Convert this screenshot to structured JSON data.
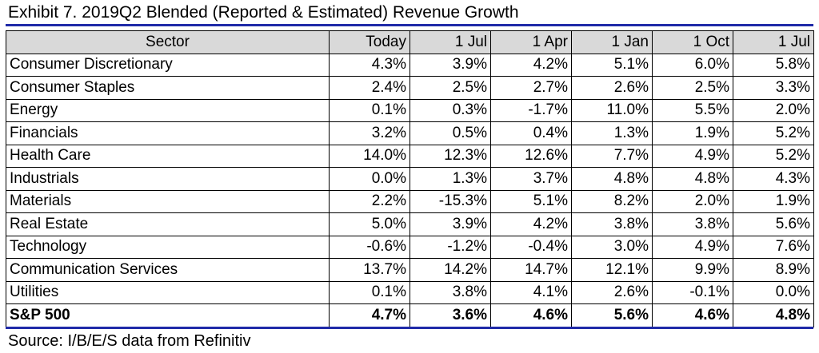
{
  "title": "Exhibit 7.  2019Q2 Blended (Reported & Estimated) Revenue Growth",
  "source": "Source: I/B/E/S data from Refinitiv",
  "colors": {
    "rule": "#1f2aa8",
    "header_bg": "#d9d9d9"
  },
  "table": {
    "headers": [
      "Sector",
      "Today",
      "1 Jul",
      "1 Apr",
      "1 Jan",
      "1 Oct",
      "1 Jul"
    ],
    "rows": [
      {
        "sector": "Consumer Discretionary",
        "values": [
          "4.3%",
          "3.9%",
          "4.2%",
          "5.1%",
          "6.0%",
          "5.8%"
        ]
      },
      {
        "sector": "Consumer Staples",
        "values": [
          "2.4%",
          "2.5%",
          "2.7%",
          "2.6%",
          "2.5%",
          "3.3%"
        ]
      },
      {
        "sector": "Energy",
        "values": [
          "0.1%",
          "0.3%",
          "-1.7%",
          "11.0%",
          "5.5%",
          "2.0%"
        ]
      },
      {
        "sector": "Financials",
        "values": [
          "3.2%",
          "0.5%",
          "0.4%",
          "1.3%",
          "1.9%",
          "5.2%"
        ]
      },
      {
        "sector": "Health Care",
        "values": [
          "14.0%",
          "12.3%",
          "12.6%",
          "7.7%",
          "4.9%",
          "5.2%"
        ]
      },
      {
        "sector": "Industrials",
        "values": [
          "0.0%",
          "1.3%",
          "3.7%",
          "4.8%",
          "4.8%",
          "4.3%"
        ]
      },
      {
        "sector": "Materials",
        "values": [
          "2.2%",
          "-15.3%",
          "5.1%",
          "8.2%",
          "2.0%",
          "1.9%"
        ]
      },
      {
        "sector": "Real Estate",
        "values": [
          "5.0%",
          "3.9%",
          "4.2%",
          "3.8%",
          "3.8%",
          "5.6%"
        ]
      },
      {
        "sector": "Technology",
        "values": [
          "-0.6%",
          "-1.2%",
          "-0.4%",
          "3.0%",
          "4.9%",
          "7.6%"
        ]
      },
      {
        "sector": "Communication Services",
        "values": [
          "13.7%",
          "14.2%",
          "14.7%",
          "12.1%",
          "9.9%",
          "8.9%"
        ]
      },
      {
        "sector": "Utilities",
        "values": [
          "0.1%",
          "3.8%",
          "4.1%",
          "2.6%",
          "-0.1%",
          "0.0%"
        ]
      }
    ],
    "total": {
      "sector": "S&P 500",
      "values": [
        "4.7%",
        "3.6%",
        "4.6%",
        "5.6%",
        "4.6%",
        "4.8%"
      ]
    }
  }
}
